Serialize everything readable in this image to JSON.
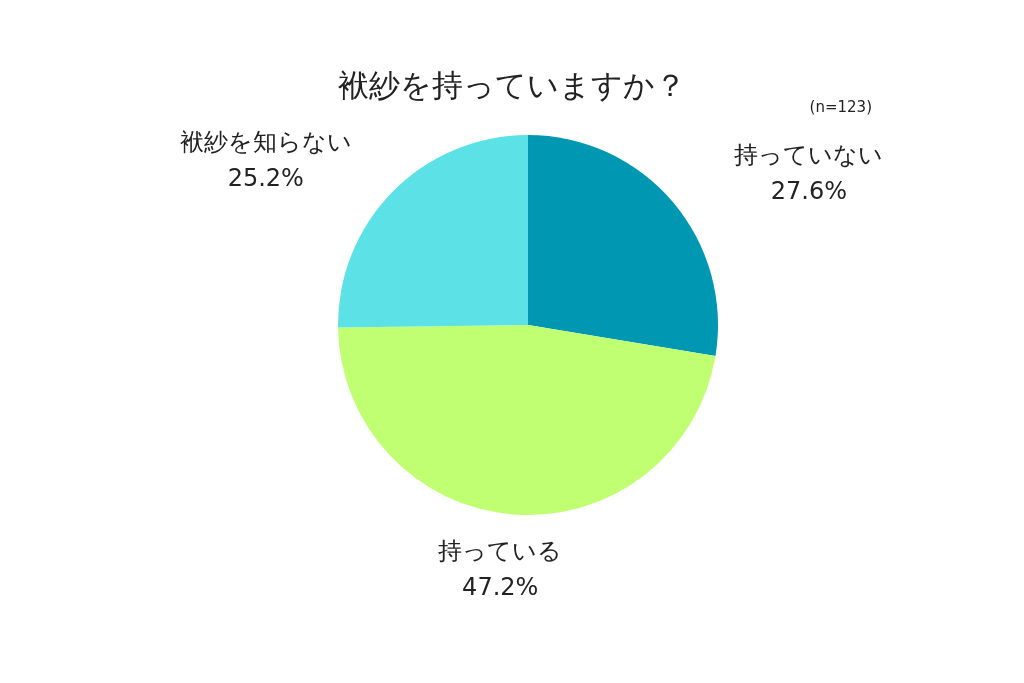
{
  "chart_data": {
    "type": "pie",
    "title": "袱紗を持っていますか？",
    "annotations": [
      "(n=123)"
    ],
    "categories": [
      "持っていない",
      "持っている",
      "袱紗を知らない"
    ],
    "values": [
      27.6,
      47.2,
      25.2
    ],
    "colors": [
      "#0097b2",
      "#c1ff72",
      "#5ce1e6"
    ],
    "value_labels": [
      "27.6%",
      "47.2%",
      "25.2%"
    ]
  }
}
